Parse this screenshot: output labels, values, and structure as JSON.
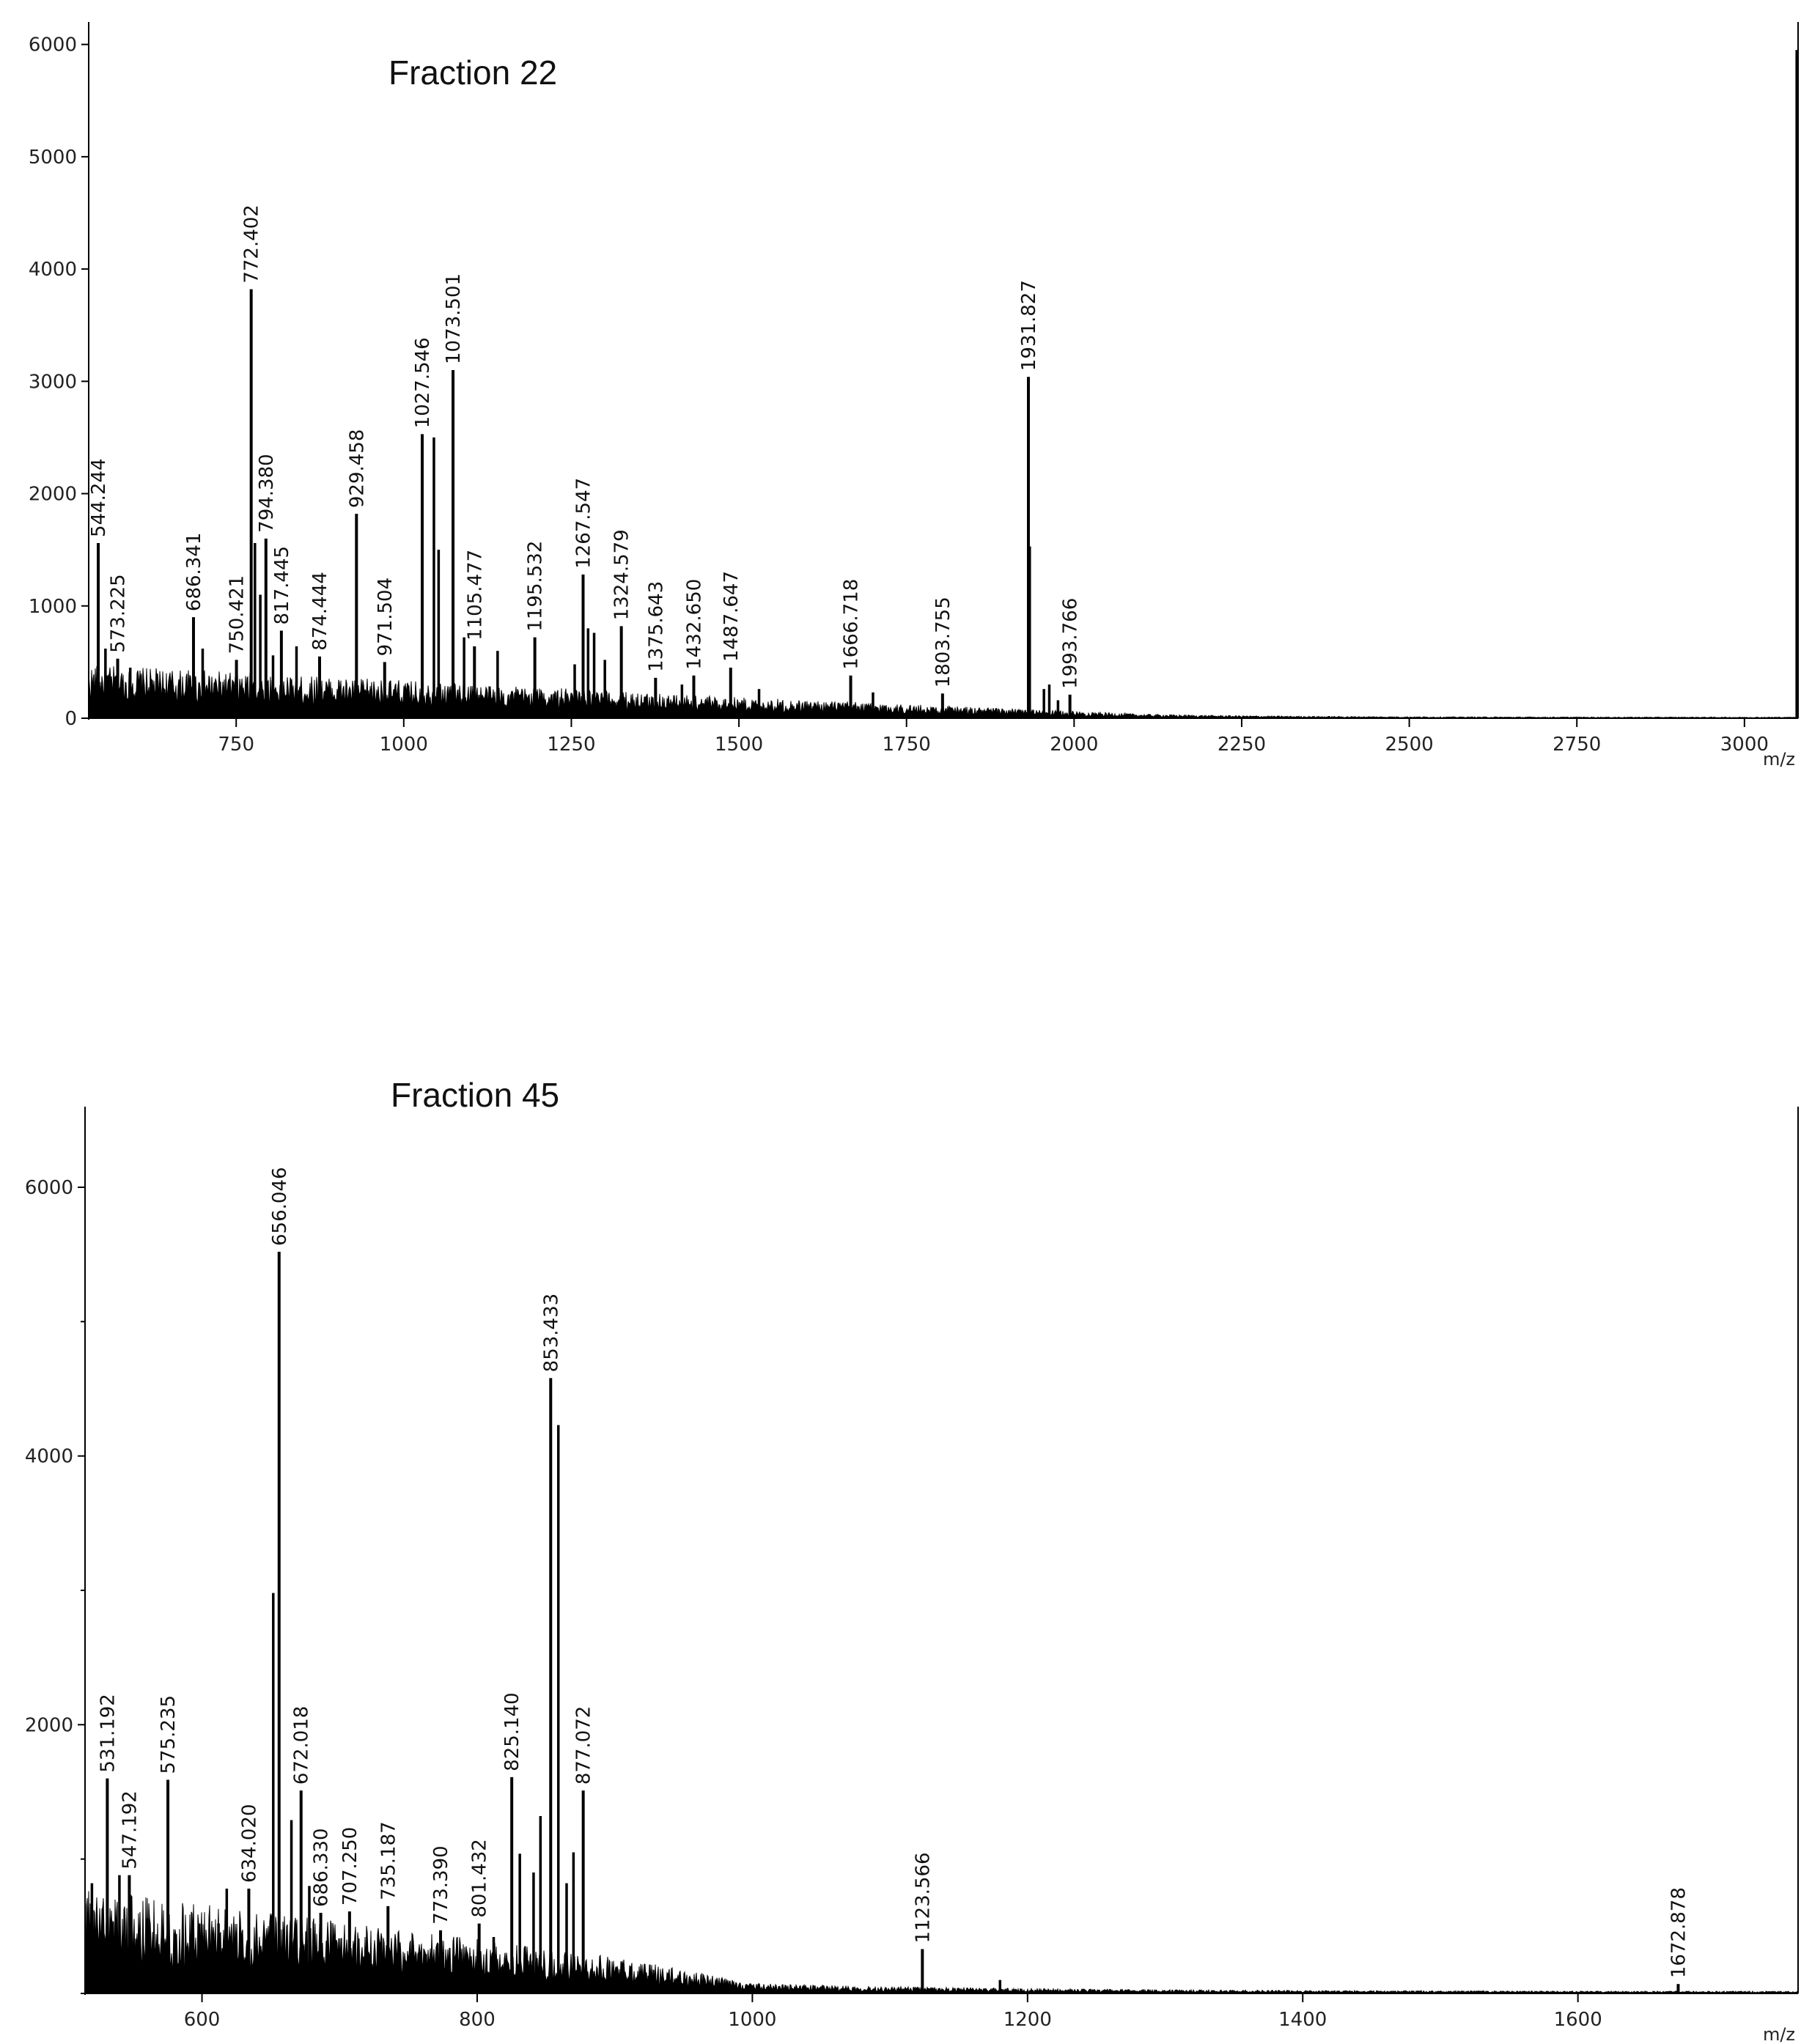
{
  "chart_data": [
    {
      "type": "line",
      "title": "Fraction 22",
      "xlabel": "m/z",
      "ylabel": "",
      "xlim": [
        530,
        3080
      ],
      "ylim": [
        0,
        6200
      ],
      "xticks": [
        750,
        1000,
        1250,
        1500,
        1750,
        2000,
        2250,
        2500,
        2750,
        3000
      ],
      "yticks": [
        0,
        1000,
        2000,
        3000,
        4000,
        5000,
        6000
      ],
      "grid": false,
      "noise": {
        "start": 380,
        "mid_x": 1500,
        "mid": 150,
        "end_x": 2100,
        "end": 30,
        "floor": 8
      },
      "peaks": [
        {
          "x": 544.244,
          "y": 1560,
          "label": "544.244"
        },
        {
          "x": 573.225,
          "y": 530,
          "label": "573.225"
        },
        {
          "x": 686.341,
          "y": 900,
          "label": "686.341"
        },
        {
          "x": 750.421,
          "y": 520,
          "label": "750.421"
        },
        {
          "x": 772.402,
          "y": 3820,
          "label": "772.402"
        },
        {
          "x": 794.38,
          "y": 1600,
          "label": "794.380"
        },
        {
          "x": 817.445,
          "y": 780,
          "label": "817.445"
        },
        {
          "x": 874.444,
          "y": 550,
          "label": "874.444"
        },
        {
          "x": 929.458,
          "y": 1820,
          "label": "929.458"
        },
        {
          "x": 971.504,
          "y": 500,
          "label": "971.504"
        },
        {
          "x": 1027.546,
          "y": 2530,
          "label": "1027.546"
        },
        {
          "x": 1073.501,
          "y": 3100,
          "label": "1073.501"
        },
        {
          "x": 1105.477,
          "y": 640,
          "label": "1105.477"
        },
        {
          "x": 1195.532,
          "y": 720,
          "label": "1195.532"
        },
        {
          "x": 1267.547,
          "y": 1280,
          "label": "1267.547"
        },
        {
          "x": 1324.579,
          "y": 820,
          "label": "1324.579"
        },
        {
          "x": 1375.643,
          "y": 360,
          "label": "1375.643"
        },
        {
          "x": 1432.65,
          "y": 380,
          "label": "1432.650"
        },
        {
          "x": 1487.647,
          "y": 450,
          "label": "1487.647"
        },
        {
          "x": 1666.718,
          "y": 380,
          "label": "1666.718"
        },
        {
          "x": 1803.755,
          "y": 220,
          "label": "1803.755"
        },
        {
          "x": 1931.827,
          "y": 3040,
          "label": "1931.827"
        },
        {
          "x": 1993.766,
          "y": 210,
          "label": "1993.766"
        }
      ],
      "minor_peaks": [
        {
          "x": 555,
          "y": 620
        },
        {
          "x": 592,
          "y": 450
        },
        {
          "x": 700,
          "y": 620
        },
        {
          "x": 778,
          "y": 1560
        },
        {
          "x": 786,
          "y": 1100
        },
        {
          "x": 805,
          "y": 560
        },
        {
          "x": 840,
          "y": 640
        },
        {
          "x": 1045,
          "y": 2500
        },
        {
          "x": 1052,
          "y": 1500
        },
        {
          "x": 1090,
          "y": 720
        },
        {
          "x": 1140,
          "y": 600
        },
        {
          "x": 1255,
          "y": 480
        },
        {
          "x": 1275,
          "y": 800
        },
        {
          "x": 1284,
          "y": 760
        },
        {
          "x": 1300,
          "y": 520
        },
        {
          "x": 1415,
          "y": 300
        },
        {
          "x": 1530,
          "y": 260
        },
        {
          "x": 1700,
          "y": 230
        },
        {
          "x": 1933.8,
          "y": 1530
        },
        {
          "x": 1955,
          "y": 260
        },
        {
          "x": 1963,
          "y": 300
        },
        {
          "x": 1976,
          "y": 160
        },
        {
          "x": 3078,
          "y": 5950
        }
      ]
    },
    {
      "type": "line",
      "title": "Fraction 45",
      "xlabel": "m/z",
      "ylabel": "",
      "xlim": [
        515,
        1760
      ],
      "ylim": [
        0,
        6600
      ],
      "xticks": [
        600,
        800,
        1000,
        1200,
        1400,
        1600
      ],
      "xtick_labels": [
        "600",
        "800",
        "1000",
        "1200",
        "1400",
        "1600"
      ],
      "yticks": [
        2000,
        4000,
        6000
      ],
      "grid": false,
      "noise": {
        "start": 620,
        "mid_x": 900,
        "mid": 220,
        "end_x": 1000,
        "end": 60,
        "floor": 12
      },
      "peaks": [
        {
          "x": 531.192,
          "y": 1600,
          "label": "531.192"
        },
        {
          "x": 547.192,
          "y": 880,
          "label": "547.192"
        },
        {
          "x": 575.235,
          "y": 1590,
          "label": "575.235"
        },
        {
          "x": 634.02,
          "y": 780,
          "label": "634.020"
        },
        {
          "x": 656.046,
          "y": 5520,
          "label": "656.046"
        },
        {
          "x": 672.018,
          "y": 1510,
          "label": "672.018"
        },
        {
          "x": 686.33,
          "y": 600,
          "label": "686.330"
        },
        {
          "x": 707.25,
          "y": 610,
          "label": "707.250"
        },
        {
          "x": 735.187,
          "y": 650,
          "label": "735.187"
        },
        {
          "x": 773.39,
          "y": 470,
          "label": "773.390"
        },
        {
          "x": 801.432,
          "y": 520,
          "label": "801.432"
        },
        {
          "x": 825.14,
          "y": 1610,
          "label": "825.140"
        },
        {
          "x": 853.433,
          "y": 4580,
          "label": "853.433"
        },
        {
          "x": 877.072,
          "y": 1510,
          "label": "877.072"
        },
        {
          "x": 1123.566,
          "y": 330,
          "label": "1123.566"
        },
        {
          "x": 1672.878,
          "y": 70,
          "label": "1672.878"
        }
      ],
      "minor_peaks": [
        {
          "x": 520,
          "y": 820
        },
        {
          "x": 540,
          "y": 880
        },
        {
          "x": 560,
          "y": 560
        },
        {
          "x": 598,
          "y": 520
        },
        {
          "x": 612,
          "y": 520
        },
        {
          "x": 618,
          "y": 780
        },
        {
          "x": 651.8,
          "y": 2980
        },
        {
          "x": 665,
          "y": 1290
        },
        {
          "x": 678,
          "y": 800
        },
        {
          "x": 812,
          "y": 420
        },
        {
          "x": 831,
          "y": 1040
        },
        {
          "x": 841,
          "y": 900
        },
        {
          "x": 846,
          "y": 1320
        },
        {
          "x": 859,
          "y": 4230
        },
        {
          "x": 865,
          "y": 820
        },
        {
          "x": 870,
          "y": 1050
        },
        {
          "x": 1180,
          "y": 100
        }
      ]
    }
  ]
}
